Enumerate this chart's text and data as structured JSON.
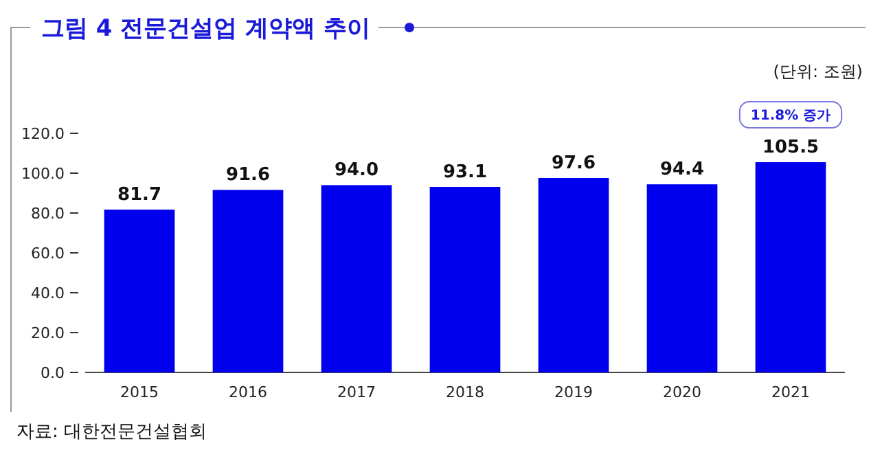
{
  "chart_data": {
    "type": "bar",
    "title": "그림 4 전문건설업 계약액 추이",
    "ylabel": "(단위: 조원)",
    "categories": [
      "2015",
      "2016",
      "2017",
      "2018",
      "2019",
      "2020",
      "2021"
    ],
    "values": [
      81.7,
      91.6,
      94.0,
      93.1,
      97.6,
      94.4,
      105.5
    ],
    "value_labels": [
      "81.7",
      "91.6",
      "94.0",
      "93.1",
      "97.6",
      "94.4",
      "105.5"
    ],
    "color": "#0000ee",
    "ylim": [
      0,
      120
    ],
    "yticks": [
      {
        "value": 0,
        "label": "0.0"
      },
      {
        "value": 20,
        "label": "20.0"
      },
      {
        "value": 40,
        "label": "40.0"
      },
      {
        "value": 60,
        "label": "60.0"
      },
      {
        "value": 80,
        "label": "80.0"
      },
      {
        "value": 100,
        "label": "100.0"
      },
      {
        "value": 120,
        "label": "120.0"
      }
    ],
    "grid": false,
    "annotations": [
      "11.8% 증가",
      "자료: 대한전문건설협회"
    ]
  }
}
